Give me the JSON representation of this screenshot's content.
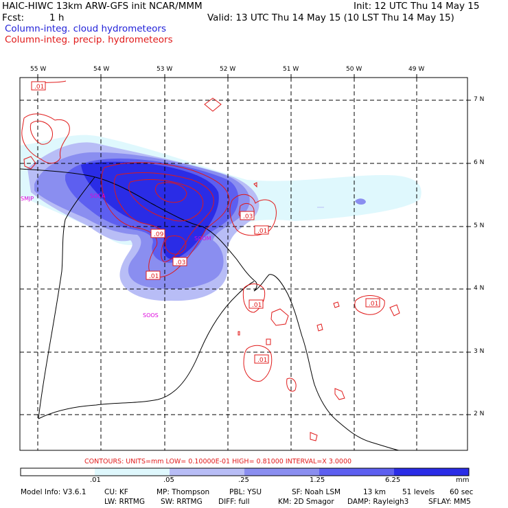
{
  "header": {
    "title": "HAIC-HIWC 13km ARW-GFS init    NCAR/MMM",
    "init": "Init: 12 UTC Thu 14 May 15",
    "fcst_label": "Fcst:",
    "fcst_value": "1 h",
    "valid": "Valid: 13 UTC Thu 14 May 15 (10 LST Thu 14 May 15)",
    "field1": "Column-integ. cloud hydrometeors",
    "field2": "Column-integ. precip. hydrometeors"
  },
  "map": {
    "lon_labels": [
      "55 W",
      "54 W",
      "53 W",
      "52 W",
      "51 W",
      "50 W",
      "49 W"
    ],
    "lat_labels": [
      "7 N",
      "6 N",
      "5 N",
      "4 N",
      "3 N",
      "2 N"
    ],
    "stations": [
      "SMJP",
      "SOCA",
      "SOOM",
      "SOOS"
    ],
    "contour_labels": [
      ".01",
      ".09",
      ".03",
      ".01",
      ".03",
      ".01",
      ".01",
      ".01",
      ".01"
    ],
    "colors": {
      "level1": "#dff8fd",
      "level2": "#b8bdf6",
      "level3": "#8a8ef0",
      "level4": "#5d5ff0",
      "level5": "#2a2ce6",
      "contour": "#e01818",
      "station": "#dd00dd",
      "grid": "#000000"
    }
  },
  "contours_text": "CONTOURS:  UNITS=mm  LOW= 0.10000E-01  HIGH= 0.81000     INTERVAL=X  3.0000",
  "legend": {
    "ticks": [
      ".01",
      ".05",
      ".25",
      "1.25",
      "6.25",
      "mm"
    ],
    "colors": [
      "#ffffff",
      "#dff8fd",
      "#b8bdf6",
      "#8a8ef0",
      "#5d5ff0",
      "#2a2ce6"
    ]
  },
  "model_info": {
    "line1": [
      "Model Info: V3.6.1",
      "CU: KF",
      "MP: Thompson",
      "PBL: YSU",
      "SF: Noah LSM",
      "13 km",
      "51 levels",
      "60 sec"
    ],
    "line2": [
      "LW: RRTMG",
      "SW: RRTMG",
      "DIFF: full",
      "KM: 2D Smagor",
      "DAMP: Rayleigh3",
      "SFLAY: MM5"
    ]
  }
}
